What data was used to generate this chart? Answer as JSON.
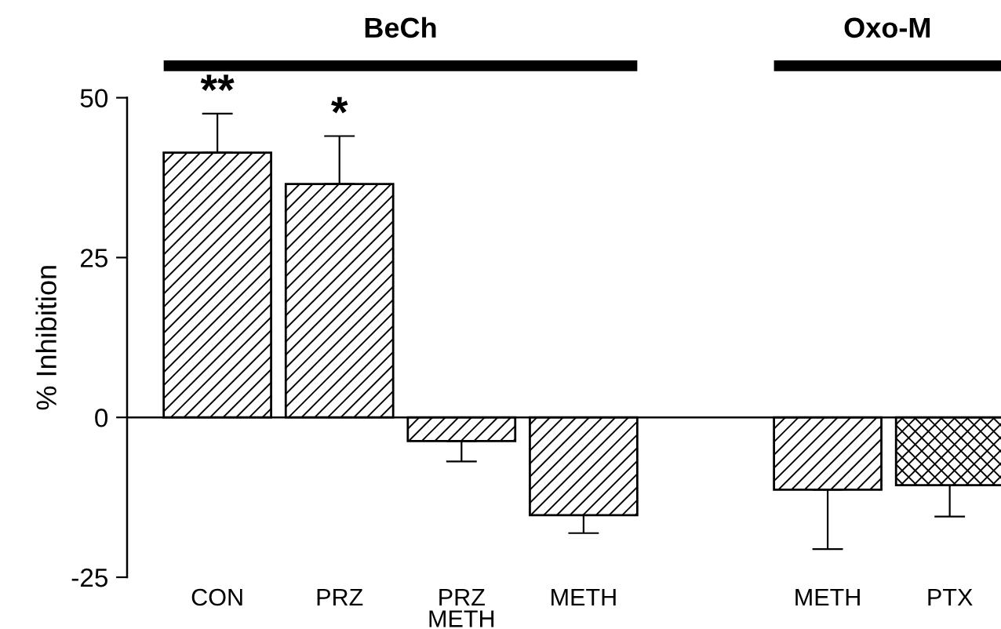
{
  "chart_data": {
    "type": "bar",
    "ylabel": "% Inhibition",
    "categories": [
      "CON",
      "PRZ",
      "PRZ\nMETH",
      "METH",
      null,
      "METH",
      "PTX"
    ],
    "values": [
      41.4,
      36.5,
      -3.7,
      -15.3,
      null,
      -11.3,
      -10.6
    ],
    "errors": [
      [
        41.4,
        47.5
      ],
      [
        36.5,
        44.0
      ],
      [
        -6.9,
        -3.7
      ],
      [
        -18.1,
        -15.3
      ],
      null,
      [
        -20.6,
        -11.3
      ],
      [
        -15.5,
        -10.6
      ]
    ],
    "colors": [
      "#000000",
      "#000000",
      "#000000",
      "#000000",
      "#000000",
      "#000000",
      "#000000"
    ],
    "ylim": [
      -25,
      50
    ],
    "yticks": [
      -25,
      0,
      25,
      50
    ],
    "ref_lines": [
      {
        "axis": "y",
        "value": 0,
        "color": "#000000"
      }
    ],
    "annotations": [
      "BeCh",
      "Oxo-M",
      "**",
      "*"
    ],
    "grid": false,
    "legend": false
  }
}
